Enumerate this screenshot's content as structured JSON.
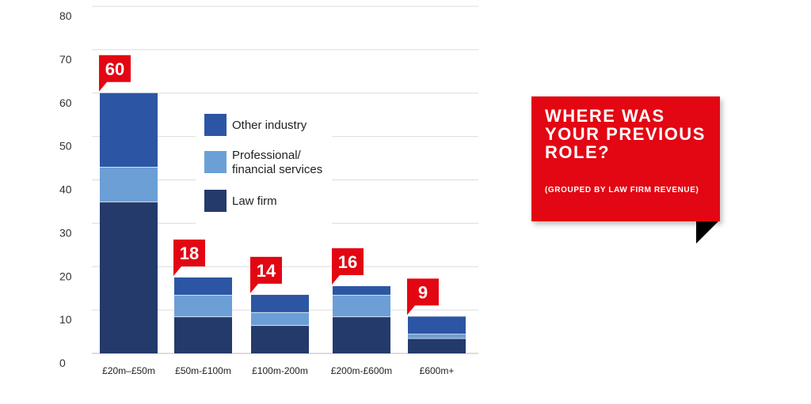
{
  "chart_data": {
    "type": "bar",
    "stacked": true,
    "categories": [
      "£20m–£50m",
      "£50m-£100m",
      "£100m-200m",
      "£200m-£600m",
      "£600m+"
    ],
    "series": [
      {
        "name": "Law firm",
        "values": [
          35,
          8.5,
          6.5,
          8.5,
          3.5
        ],
        "color": "#243a6b"
      },
      {
        "name": "Professional/\nfinancial services",
        "values": [
          8,
          5,
          3,
          5,
          1
        ],
        "color": "#6b9fd6"
      },
      {
        "name": "Other industry",
        "values": [
          17,
          4,
          4,
          2,
          4
        ],
        "color": "#2c56a3"
      }
    ],
    "totals": [
      60,
      18,
      14,
      16,
      9
    ],
    "total_label_color": "#e30613",
    "ylim": [
      0,
      80
    ],
    "yticks": [
      0,
      10,
      20,
      30,
      40,
      50,
      60,
      70,
      80
    ],
    "grid": true,
    "legend_order": [
      "Other industry",
      "Professional/\nfinancial services",
      "Law firm"
    ],
    "legend_placement": "inside-top-center",
    "title": "WHERE WAS YOUR PREVIOUS ROLE?",
    "subtitle": "(GROUPED BY LAW FIRM REVENUE)",
    "xlabel": "",
    "ylabel": ""
  }
}
